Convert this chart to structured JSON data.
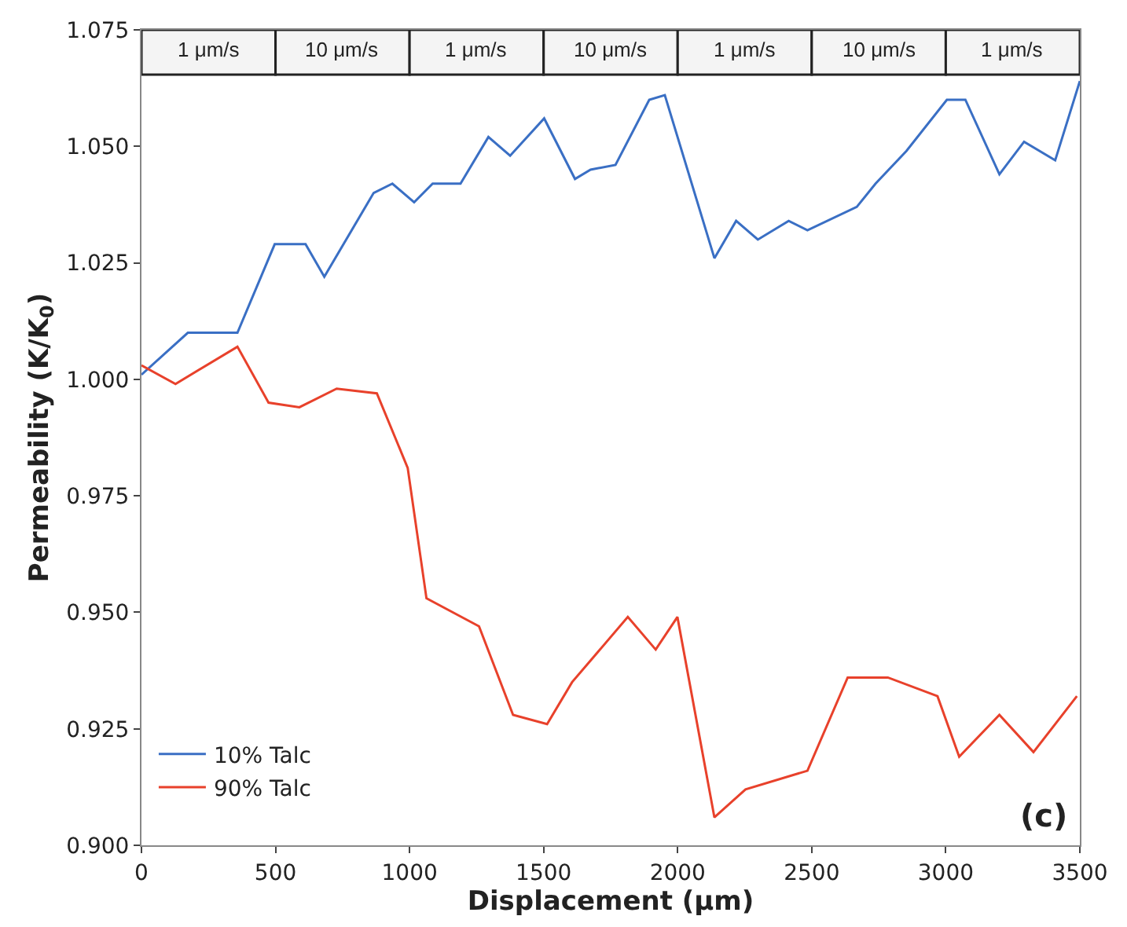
{
  "chart_data": {
    "type": "line",
    "xlabel": "Displacement (μm)",
    "ylabel": "Permeability (K/K$_{0}$)",
    "xlim": [
      0,
      3500
    ],
    "xticks": [
      0,
      500,
      1000,
      1500,
      2000,
      2500,
      3000,
      3500
    ],
    "ylim": [
      0.9,
      1.075
    ],
    "yticks": [
      {
        "value": 0.9,
        "label": "0.900"
      },
      {
        "value": 0.925,
        "label": "0.925"
      },
      {
        "value": 0.95,
        "label": "0.950"
      },
      {
        "value": 0.975,
        "label": "0.975"
      },
      {
        "value": 1.0,
        "label": "1.000"
      },
      {
        "value": 1.025,
        "label": "1.025"
      },
      {
        "value": 1.05,
        "label": "1.050"
      },
      {
        "value": 1.075,
        "label": "1.075"
      }
    ],
    "grid": false,
    "legend": "bottom left",
    "line_style": "solid",
    "series": [
      {
        "name": "10% Talc",
        "color": "#3a6fc4",
        "x": [
          0,
          173,
          358,
          497,
          612,
          682,
          866,
          936,
          1017,
          1086,
          1190,
          1294,
          1375,
          1502,
          1617,
          1675,
          1768,
          1894,
          1952,
          2137,
          2218,
          2299,
          2414,
          2484,
          2668,
          2738,
          2853,
          3004,
          3073,
          3200,
          3292,
          3408,
          3500
        ],
        "values": [
          1.001,
          1.01,
          1.01,
          1.029,
          1.029,
          1.022,
          1.04,
          1.042,
          1.038,
          1.042,
          1.042,
          1.052,
          1.048,
          1.056,
          1.043,
          1.045,
          1.046,
          1.06,
          1.061,
          1.026,
          1.034,
          1.03,
          1.034,
          1.032,
          1.037,
          1.042,
          1.049,
          1.06,
          1.06,
          1.044,
          1.051,
          1.047,
          1.064
        ]
      },
      {
        "name": "90% Talc",
        "color": "#e8412b",
        "x": [
          0,
          127,
          358,
          474,
          589,
          728,
          878,
          993,
          1063,
          1259,
          1386,
          1513,
          1606,
          1814,
          1918,
          1999,
          2137,
          2253,
          2484,
          2634,
          2784,
          2969,
          3050,
          3200,
          3327,
          3489
        ],
        "values": [
          1.003,
          0.999,
          1.007,
          0.995,
          0.994,
          0.998,
          0.997,
          0.981,
          0.953,
          0.947,
          0.928,
          0.926,
          0.935,
          0.949,
          0.942,
          0.949,
          0.906,
          0.912,
          0.916,
          0.936,
          0.936,
          0.932,
          0.919,
          0.928,
          0.92,
          0.932
        ]
      }
    ],
    "bands": [
      {
        "axis": "x",
        "from": 0,
        "to": 500,
        "label": "1 μm/s",
        "color": "#f4f4f4"
      },
      {
        "axis": "x",
        "from": 500,
        "to": 1000,
        "label": "10 μm/s",
        "color": "#f4f4f4"
      },
      {
        "axis": "x",
        "from": 1000,
        "to": 1500,
        "label": "1 μm/s",
        "color": "#f4f4f4"
      },
      {
        "axis": "x",
        "from": 1500,
        "to": 2000,
        "label": "10 μm/s",
        "color": "#f4f4f4"
      },
      {
        "axis": "x",
        "from": 2000,
        "to": 2500,
        "label": "1 μm/s",
        "color": "#f4f4f4"
      },
      {
        "axis": "x",
        "from": 2500,
        "to": 3000,
        "label": "10 μm/s",
        "color": "#f4f4f4"
      },
      {
        "axis": "x",
        "from": 3000,
        "to": 3500,
        "label": "1 μm/s",
        "color": "#f4f4f4"
      }
    ],
    "annotations": [
      "(c)"
    ]
  }
}
